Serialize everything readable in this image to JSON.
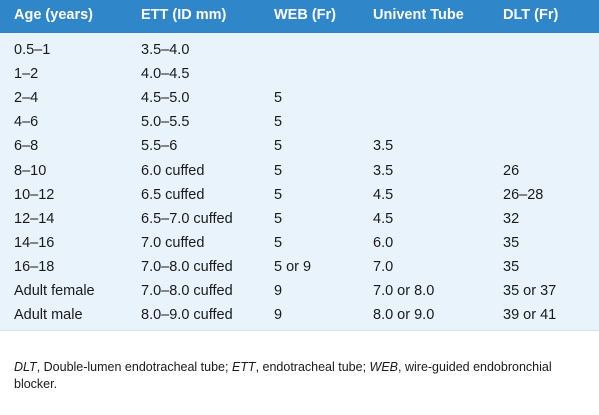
{
  "table": {
    "headers": [
      "Age (years)",
      "ETT (ID mm)",
      "WEB (Fr)",
      "Univent Tube",
      "DLT (Fr)"
    ],
    "rows": [
      [
        "0.5–1",
        "3.5–4.0",
        "",
        "",
        ""
      ],
      [
        "1–2",
        "4.0–4.5",
        "",
        "",
        ""
      ],
      [
        "2–4",
        "4.5–5.0",
        "5",
        "",
        ""
      ],
      [
        "4–6",
        "5.0–5.5",
        "5",
        "",
        ""
      ],
      [
        "6–8",
        "5.5–6",
        "5",
        "3.5",
        ""
      ],
      [
        "8–10",
        "6.0 cuffed",
        "5",
        "3.5",
        "26"
      ],
      [
        "10–12",
        "6.5 cuffed",
        "5",
        "4.5",
        "26–28"
      ],
      [
        "12–14",
        "6.5–7.0 cuffed",
        "5",
        "4.5",
        "32"
      ],
      [
        "14–16",
        "7.0 cuffed",
        "5",
        "6.0",
        "35"
      ],
      [
        "16–18",
        "7.0–8.0 cuffed",
        "5 or 9",
        "7.0",
        "35"
      ],
      [
        "Adult female",
        "7.0–8.0 cuffed",
        "9",
        "7.0 or 8.0",
        "35 or 37"
      ],
      [
        "Adult male",
        "8.0–9.0 cuffed",
        "9",
        "8.0 or 9.0",
        "39 or 41"
      ]
    ]
  },
  "footnote": {
    "abbr1": "DLT",
    "def1": ", Double-lumen endotracheal tube; ",
    "abbr2": "ETT",
    "def2": ", endotracheal tube; ",
    "abbr3": "WEB",
    "def3": ", wire-guided endobronchial blocker."
  },
  "colors": {
    "header_bg": "#2f86c9",
    "body_bg": "#e9f3fb"
  }
}
